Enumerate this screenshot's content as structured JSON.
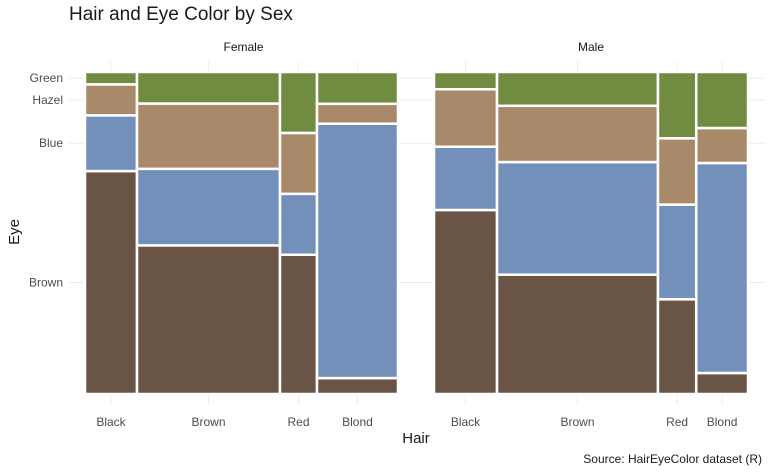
{
  "chart_data": {
    "type": "mosaic",
    "title": "Hair and Eye Color by Sex",
    "caption": "Source: HairEyeColor dataset (R)",
    "xlabel": "Hair",
    "ylabel": "Eye",
    "hair": [
      "Black",
      "Brown",
      "Red",
      "Blond"
    ],
    "eye_stack_bottom_to_top": [
      "Brown",
      "Blue",
      "Hazel",
      "Green"
    ],
    "y_ticks": [
      "Brown",
      "Blue",
      "Hazel",
      "Green"
    ],
    "colors": {
      "Brown": "#6a5446",
      "Blue": "#7390ba",
      "Hazel": "#a8896a",
      "Green": "#718c40"
    },
    "panels": [
      {
        "sex": "Female",
        "counts": {
          "Black": {
            "Brown": 36,
            "Blue": 9,
            "Hazel": 5,
            "Green": 2
          },
          "Brown": {
            "Brown": 66,
            "Blue": 34,
            "Hazel": 29,
            "Green": 14
          },
          "Red": {
            "Brown": 16,
            "Blue": 7,
            "Hazel": 7,
            "Green": 7
          },
          "Blond": {
            "Brown": 4,
            "Blue": 64,
            "Hazel": 5,
            "Green": 8
          }
        }
      },
      {
        "sex": "Male",
        "counts": {
          "Black": {
            "Brown": 32,
            "Blue": 11,
            "Hazel": 10,
            "Green": 3
          },
          "Brown": {
            "Brown": 53,
            "Blue": 50,
            "Hazel": 25,
            "Green": 15
          },
          "Red": {
            "Brown": 10,
            "Blue": 10,
            "Hazel": 7,
            "Green": 7
          },
          "Blond": {
            "Brown": 3,
            "Blue": 30,
            "Hazel": 5,
            "Green": 8
          }
        }
      }
    ]
  }
}
